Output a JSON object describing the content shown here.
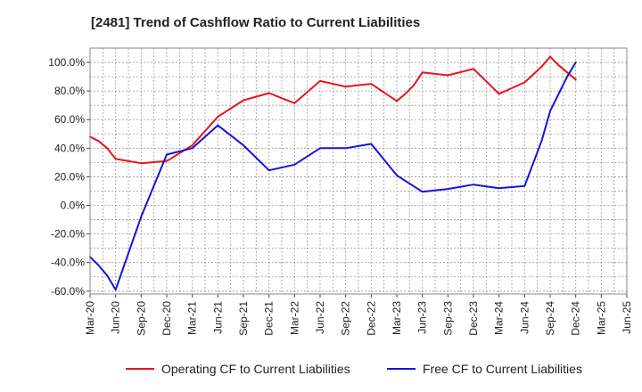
{
  "chart_data": {
    "type": "line",
    "title": "[2481]  Trend of Cashflow Ratio to Current Liabilities",
    "xlabel": "",
    "ylabel": "",
    "ylim": [
      -62,
      110
    ],
    "y_ticks": [
      "100.0%",
      "80.0%",
      "60.0%",
      "40.0%",
      "20.0%",
      "0.0%",
      "-20.0%",
      "-40.0%",
      "-60.0%"
    ],
    "y_tick_values": [
      100,
      80,
      60,
      40,
      20,
      0,
      -20,
      -40,
      -60
    ],
    "x_ticks": [
      "Mar-20",
      "Jun-20",
      "Sep-20",
      "Dec-20",
      "Mar-21",
      "Jun-21",
      "Sep-21",
      "Dec-21",
      "Mar-22",
      "Jun-22",
      "Sep-22",
      "Dec-22",
      "Mar-23",
      "Jun-23",
      "Sep-23",
      "Dec-23",
      "Mar-24",
      "Jun-24",
      "Sep-24",
      "Dec-24",
      "Mar-25",
      "Jun-25"
    ],
    "grid": true,
    "legend_position": "bottom",
    "series": [
      {
        "name": "Operating CF to Current Liabilities",
        "color": "#e8141b",
        "x": [
          "Mar-20",
          "Apr-20",
          "May-20",
          "Jun-20",
          "Sep-20",
          "Dec-20",
          "Mar-21",
          "Jun-21",
          "Sep-21",
          "Dec-21",
          "Mar-22",
          "Jun-22",
          "Sep-22",
          "Dec-22",
          "Mar-23",
          "Apr-23",
          "May-23",
          "Jun-23",
          "Sep-23",
          "Dec-23",
          "Mar-24",
          "Jun-24",
          "Aug-24",
          "Sep-24",
          "Oct-24",
          "Nov-24",
          "Dec-24"
        ],
        "values": [
          48,
          45,
          40,
          32.5,
          29.5,
          31,
          42,
          62,
          73.5,
          78.5,
          71.5,
          87,
          83,
          85,
          73,
          78,
          84,
          93,
          91,
          95.5,
          78,
          86,
          97,
          104,
          98,
          93,
          88
        ]
      },
      {
        "name": "Free CF to Current Liabilities",
        "color": "#1414dc",
        "x": [
          "Mar-20",
          "Apr-20",
          "May-20",
          "Jun-20",
          "Sep-20",
          "Dec-20",
          "Mar-21",
          "Jun-21",
          "Sep-21",
          "Dec-21",
          "Mar-22",
          "Jun-22",
          "Sep-22",
          "Dec-22",
          "Mar-23",
          "Jun-23",
          "Sep-23",
          "Dec-23",
          "Mar-24",
          "Jun-24",
          "Aug-24",
          "Sep-24",
          "Nov-24",
          "Dec-24"
        ],
        "values": [
          -36,
          -42,
          -49,
          -59,
          -8,
          35.5,
          40,
          56,
          42,
          24.5,
          28.5,
          40,
          40,
          43,
          21,
          9.5,
          11.5,
          14.5,
          12,
          13.5,
          45,
          66,
          90,
          100
        ]
      }
    ]
  }
}
